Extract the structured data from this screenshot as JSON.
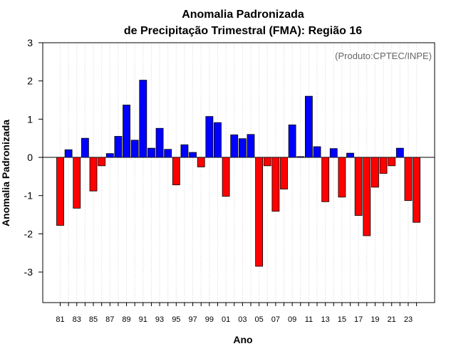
{
  "chart_data": {
    "type": "bar",
    "title": "Anomalia Padronizada",
    "subtitle": "de Precipitação Trimestral (FMA): Região 16",
    "xlabel": "Ano",
    "ylabel": "Anomalia Padronizada",
    "credit": "(Produto:CPTEC/INPE)",
    "ylim": [
      -3.8,
      3.0
    ],
    "yticks": [
      "3",
      "2",
      "1",
      "0",
      "-1",
      "-2",
      "-3"
    ],
    "ytick_values": [
      3,
      2,
      1,
      0,
      -1,
      -2,
      -3
    ],
    "grid": "vertical dotted",
    "categories": [
      "81",
      "82",
      "83",
      "84",
      "85",
      "86",
      "87",
      "88",
      "89",
      "90",
      "91",
      "92",
      "93",
      "94",
      "95",
      "96",
      "97",
      "98",
      "99",
      "00",
      "01",
      "02",
      "03",
      "04",
      "05",
      "06",
      "07",
      "08",
      "09",
      "10",
      "11",
      "12",
      "13",
      "14",
      "15",
      "16",
      "17",
      "18",
      "19",
      "20",
      "21",
      "22",
      "23",
      "24"
    ],
    "tick_labels": [
      "81",
      "83",
      "85",
      "87",
      "89",
      "91",
      "93",
      "95",
      "97",
      "99",
      "01",
      "03",
      "05",
      "07",
      "09",
      "11",
      "13",
      "15",
      "17",
      "19",
      "21",
      "23"
    ],
    "values": [
      -1.78,
      0.2,
      -1.33,
      0.5,
      -0.88,
      -0.22,
      0.1,
      0.55,
      1.37,
      0.45,
      2.02,
      0.24,
      0.76,
      0.21,
      -0.72,
      0.33,
      0.13,
      -0.25,
      1.07,
      0.91,
      -1.02,
      0.59,
      0.49,
      0.6,
      -2.85,
      -0.22,
      -1.41,
      -0.83,
      0.85,
      0.02,
      1.6,
      0.28,
      -1.16,
      0.23,
      -1.04,
      0.11,
      -1.52,
      -2.05,
      -0.78,
      -0.42,
      -0.22,
      0.24,
      -1.13,
      -1.7
    ],
    "colors": {
      "positive": "#0000ff",
      "negative": "#ff0000",
      "outline": "#000000",
      "grid": "#d3d3d3"
    }
  }
}
